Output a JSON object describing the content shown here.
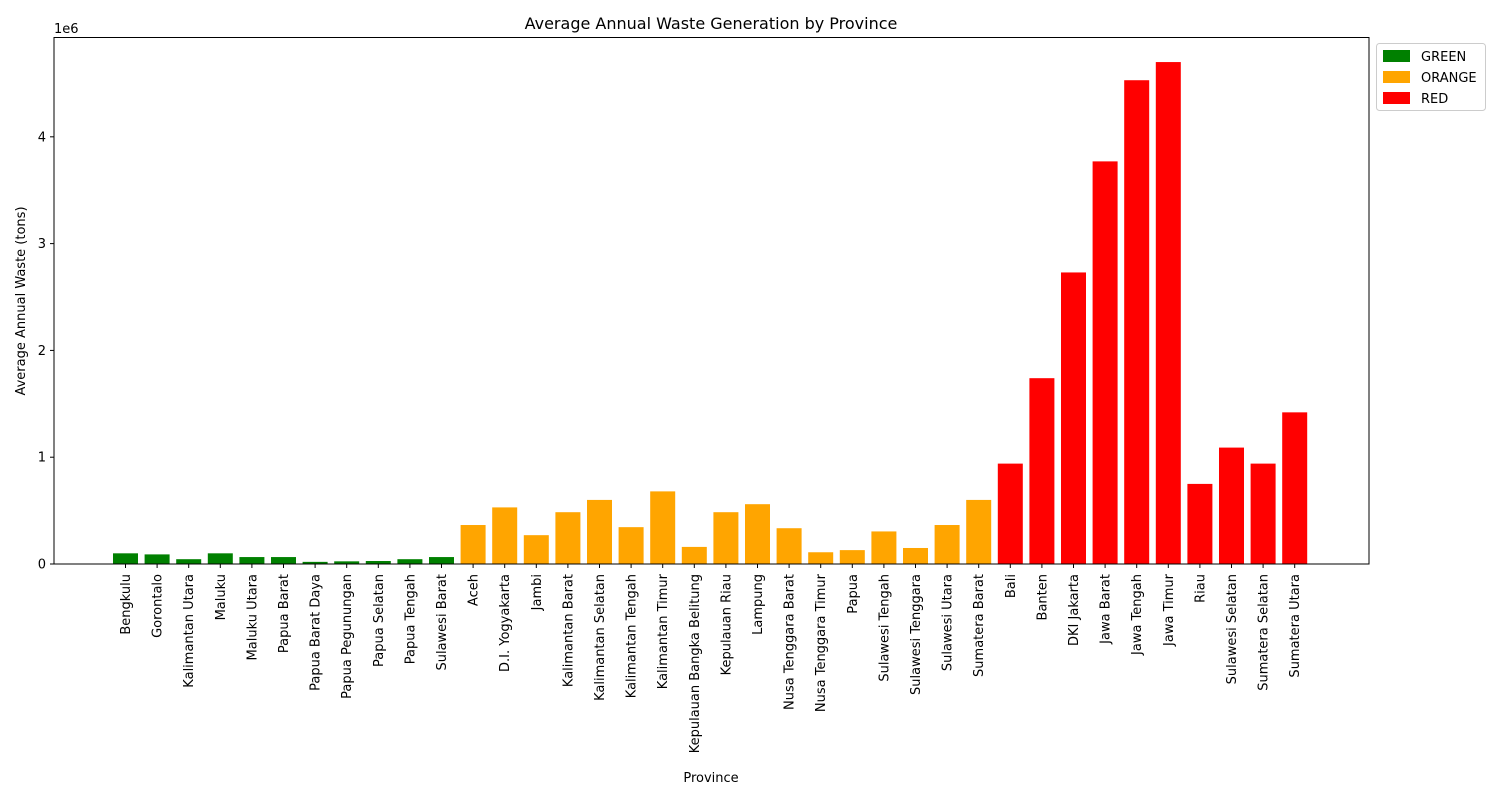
{
  "chart_data": {
    "type": "bar",
    "title": "Average Annual Waste Generation by Province",
    "xlabel": "Province",
    "ylabel": "Average Annual Waste (tons)",
    "offset_label": "1e6",
    "ylim": [
      0,
      4930000
    ],
    "yticks": [
      {
        "value": 0,
        "label": "0"
      },
      {
        "value": 1000000,
        "label": "1"
      },
      {
        "value": 2000000,
        "label": "2"
      },
      {
        "value": 3000000,
        "label": "3"
      },
      {
        "value": 4000000,
        "label": "4"
      }
    ],
    "grid": false,
    "legend_position": "outside-top-right",
    "colors": {
      "GREEN": "#008000",
      "ORANGE": "#ffa500",
      "RED": "#ff0000"
    },
    "legend": [
      "GREEN",
      "ORANGE",
      "RED"
    ],
    "bars": [
      {
        "category": "Bengkulu",
        "value": 100000,
        "group": "GREEN"
      },
      {
        "category": "Gorontalo",
        "value": 90000,
        "group": "GREEN"
      },
      {
        "category": "Kalimantan Utara",
        "value": 45000,
        "group": "GREEN"
      },
      {
        "category": "Maluku",
        "value": 100000,
        "group": "GREEN"
      },
      {
        "category": "Maluku Utara",
        "value": 65000,
        "group": "GREEN"
      },
      {
        "category": "Papua Barat",
        "value": 65000,
        "group": "GREEN"
      },
      {
        "category": "Papua Barat Daya",
        "value": 20000,
        "group": "GREEN"
      },
      {
        "category": "Papua Pegunungan",
        "value": 25000,
        "group": "GREEN"
      },
      {
        "category": "Papua Selatan",
        "value": 28000,
        "group": "GREEN"
      },
      {
        "category": "Papua Tengah",
        "value": 45000,
        "group": "GREEN"
      },
      {
        "category": "Sulawesi Barat",
        "value": 65000,
        "group": "GREEN"
      },
      {
        "category": "Aceh",
        "value": 365000,
        "group": "ORANGE"
      },
      {
        "category": "D.I. Yogyakarta",
        "value": 530000,
        "group": "ORANGE"
      },
      {
        "category": "Jambi",
        "value": 270000,
        "group": "ORANGE"
      },
      {
        "category": "Kalimantan Barat",
        "value": 485000,
        "group": "ORANGE"
      },
      {
        "category": "Kalimantan Selatan",
        "value": 600000,
        "group": "ORANGE"
      },
      {
        "category": "Kalimantan Tengah",
        "value": 345000,
        "group": "ORANGE"
      },
      {
        "category": "Kalimantan Timur",
        "value": 680000,
        "group": "ORANGE"
      },
      {
        "category": "Kepulauan Bangka Belitung",
        "value": 160000,
        "group": "ORANGE"
      },
      {
        "category": "Kepulauan Riau",
        "value": 485000,
        "group": "ORANGE"
      },
      {
        "category": "Lampung",
        "value": 560000,
        "group": "ORANGE"
      },
      {
        "category": "Nusa Tenggara Barat",
        "value": 335000,
        "group": "ORANGE"
      },
      {
        "category": "Nusa Tenggara Timur",
        "value": 110000,
        "group": "ORANGE"
      },
      {
        "category": "Papua",
        "value": 130000,
        "group": "ORANGE"
      },
      {
        "category": "Sulawesi Tengah",
        "value": 305000,
        "group": "ORANGE"
      },
      {
        "category": "Sulawesi Tenggara",
        "value": 150000,
        "group": "ORANGE"
      },
      {
        "category": "Sulawesi Utara",
        "value": 365000,
        "group": "ORANGE"
      },
      {
        "category": "Sumatera Barat",
        "value": 600000,
        "group": "ORANGE"
      },
      {
        "category": "Bali",
        "value": 940000,
        "group": "RED"
      },
      {
        "category": "Banten",
        "value": 1740000,
        "group": "RED"
      },
      {
        "category": "DKI Jakarta",
        "value": 2730000,
        "group": "RED"
      },
      {
        "category": "Jawa Barat",
        "value": 3770000,
        "group": "RED"
      },
      {
        "category": "Jawa Tengah",
        "value": 4530000,
        "group": "RED"
      },
      {
        "category": "Jawa Timur",
        "value": 4700000,
        "group": "RED"
      },
      {
        "category": "Riau",
        "value": 750000,
        "group": "RED"
      },
      {
        "category": "Sulawesi Selatan",
        "value": 1090000,
        "group": "RED"
      },
      {
        "category": "Sumatera Selatan",
        "value": 940000,
        "group": "RED"
      },
      {
        "category": "Sumatera Utara",
        "value": 1420000,
        "group": "RED"
      }
    ]
  }
}
